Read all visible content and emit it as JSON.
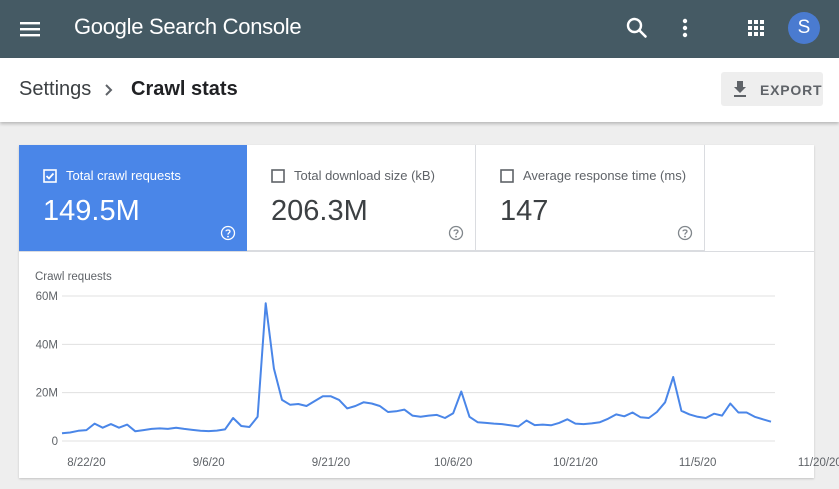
{
  "topbar": {
    "brand": "Google Search Console",
    "avatar_letter": "S",
    "icons": [
      "menu-icon",
      "search-icon",
      "more-vert-icon",
      "apps-icon"
    ]
  },
  "header": {
    "breadcrumb_parent": "Settings",
    "breadcrumb_current": "Crawl stats",
    "export_label": "EXPORT"
  },
  "metrics": [
    {
      "label": "Total crawl requests",
      "value": "149.5M",
      "selected": true
    },
    {
      "label": "Total download size (kB)",
      "value": "206.3M",
      "selected": false
    },
    {
      "label": "Average response time (ms)",
      "value": "147",
      "selected": false
    }
  ],
  "colors": {
    "topbar": "#455a64",
    "accent": "#4a86e8",
    "line": "#4a86e8"
  },
  "chart_data": {
    "type": "line",
    "title": "Crawl requests",
    "ylim": [
      0,
      60
    ],
    "y_ticks": [
      {
        "v": 0,
        "label": "0"
      },
      {
        "v": 20,
        "label": "20M"
      },
      {
        "v": 40,
        "label": "40M"
      },
      {
        "v": 60,
        "label": "60M"
      }
    ],
    "x_ticks": [
      {
        "i": 3,
        "label": "8/22/20"
      },
      {
        "i": 18,
        "label": "9/6/20"
      },
      {
        "i": 33,
        "label": "9/21/20"
      },
      {
        "i": 48,
        "label": "10/6/20"
      },
      {
        "i": 63,
        "label": "10/21/20"
      },
      {
        "i": 78,
        "label": "11/5/20"
      },
      {
        "i": 93,
        "label": "11/20/20"
      }
    ],
    "series": [
      {
        "values": [
          3.2,
          3.5,
          4.2,
          4.5,
          7.2,
          5.5,
          7,
          5.5,
          6.8,
          4,
          4.5,
          5,
          5.2,
          5,
          5.5,
          5,
          4.6,
          4.2,
          4.1,
          4.3,
          4.8,
          9.5,
          6.2,
          5.8,
          10,
          57,
          30,
          17,
          15,
          15.3,
          14.5,
          16.5,
          18.5,
          18.5,
          17,
          13.5,
          14.5,
          16,
          15.5,
          14.5,
          12,
          12.3,
          13,
          10.5,
          10,
          10.5,
          10.8,
          9.5,
          11.5,
          20.5,
          10,
          7.8,
          7.5,
          7.2,
          7,
          6.5,
          6,
          8.5,
          6.6,
          6.8,
          6.5,
          7.5,
          9,
          7.2,
          7,
          7.3,
          7.8,
          9.2,
          11,
          10.2,
          11.8,
          9.8,
          9.5,
          12,
          16,
          26.5,
          12.5,
          11,
          10,
          9.5,
          11.3,
          10.5,
          15.5,
          11.8,
          11.8,
          10,
          9,
          8
        ]
      }
    ]
  }
}
